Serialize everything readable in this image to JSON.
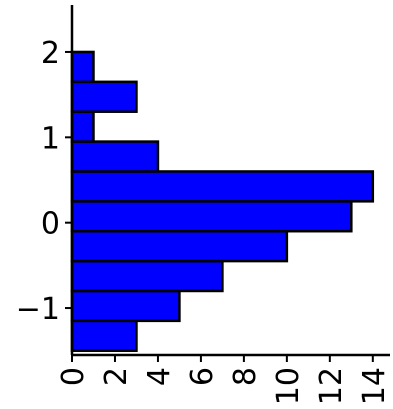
{
  "chart_data": {
    "type": "bar",
    "orientation": "horizontal",
    "title": "",
    "xlabel": "",
    "ylabel": "",
    "bins": [
      {
        "y0": -1.5,
        "y1": -1.15,
        "value": 3
      },
      {
        "y0": -1.15,
        "y1": -0.8,
        "value": 5
      },
      {
        "y0": -0.8,
        "y1": -0.45,
        "value": 7
      },
      {
        "y0": -0.45,
        "y1": -0.1,
        "value": 10
      },
      {
        "y0": -0.1,
        "y1": 0.25,
        "value": 13
      },
      {
        "y0": 0.25,
        "y1": 0.6,
        "value": 14
      },
      {
        "y0": 0.6,
        "y1": 0.95,
        "value": 4
      },
      {
        "y0": 0.95,
        "y1": 1.3,
        "value": 1
      },
      {
        "y0": 1.3,
        "y1": 1.65,
        "value": 3
      },
      {
        "y0": 1.65,
        "y1": 2.0,
        "value": 1
      }
    ],
    "xlim": [
      0,
      14.8
    ],
    "ylim": [
      -1.55,
      2.55
    ],
    "x_ticks": [
      0,
      2,
      4,
      6,
      8,
      10,
      12,
      14
    ],
    "y_ticks": [
      -1,
      0,
      1,
      2
    ],
    "y_tick_labels": [
      "−1",
      "0",
      "1",
      "2"
    ],
    "bar_color": "#0000ff",
    "edge_color": "#000000",
    "grid": false,
    "legend": "none"
  }
}
